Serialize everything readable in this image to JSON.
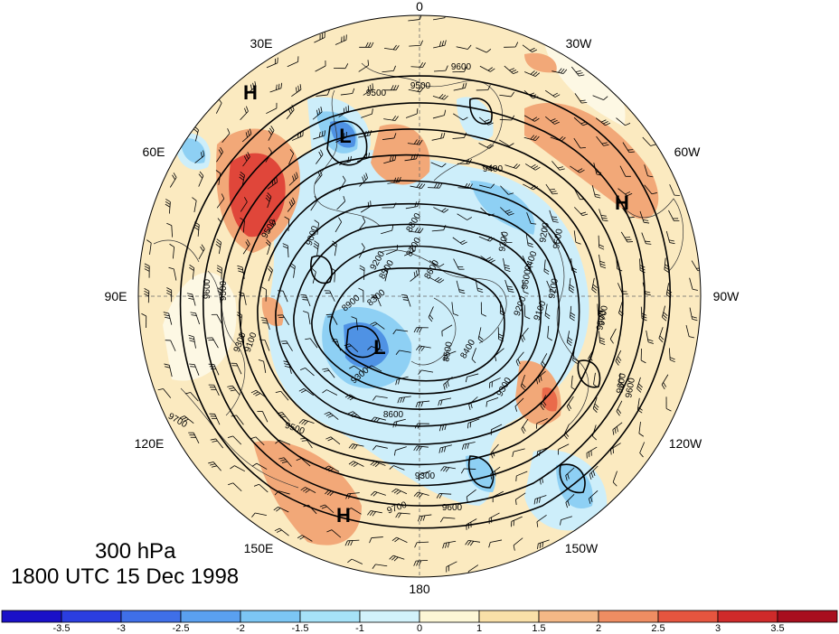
{
  "title": {
    "level": "300 hPa",
    "time": "1800 UTC 15 Dec 1998"
  },
  "longitude_labels": [
    "0",
    "30W",
    "60W",
    "90W",
    "120W",
    "150W",
    "180",
    "150E",
    "120E",
    "90E",
    "60E",
    "30E"
  ],
  "contour_labels": [
    "9600",
    "9500",
    "9500",
    "9500",
    "9400",
    "9300",
    "9200",
    "9500",
    "9600",
    "9700",
    "9600",
    "9500",
    "9300",
    "9200",
    "9100",
    "9000",
    "8900",
    "8800",
    "8700",
    "8600",
    "8500",
    "8400",
    "8300",
    "9300",
    "9200",
    "9100",
    "9400",
    "9500",
    "9700",
    "9600",
    "9300",
    "9600",
    "9500",
    "9300",
    "9200",
    "8600",
    "8500",
    "9700",
    "9600"
  ],
  "pressure_centers": [
    {
      "label": "H"
    },
    {
      "label": "L"
    },
    {
      "label": "H"
    },
    {
      "label": "L"
    },
    {
      "label": "H"
    }
  ],
  "colorbar": {
    "ticks": [
      "-3.5",
      "-3",
      "-2.5",
      "-2",
      "-1.5",
      "-1",
      "0",
      "1",
      "1.5",
      "2",
      "2.5",
      "3",
      "3.5"
    ],
    "colors": [
      "#1a10c8",
      "#2b3ee0",
      "#3f6fe8",
      "#5aa0f0",
      "#7cc6f4",
      "#a6e2f8",
      "#d2f2fb",
      "#fdf7d6",
      "#f9e0a8",
      "#f4b886",
      "#ef8d62",
      "#e6553f",
      "#cf2a2a",
      "#a80e1e"
    ]
  },
  "colors": {
    "cold_strong": "#3a78d8",
    "cold_mid": "#7cc6f4",
    "cold_light": "#cdeefa",
    "warm_light": "#fbeac0",
    "warm_mid": "#f2a878",
    "warm_strong": "#e0463a"
  }
}
